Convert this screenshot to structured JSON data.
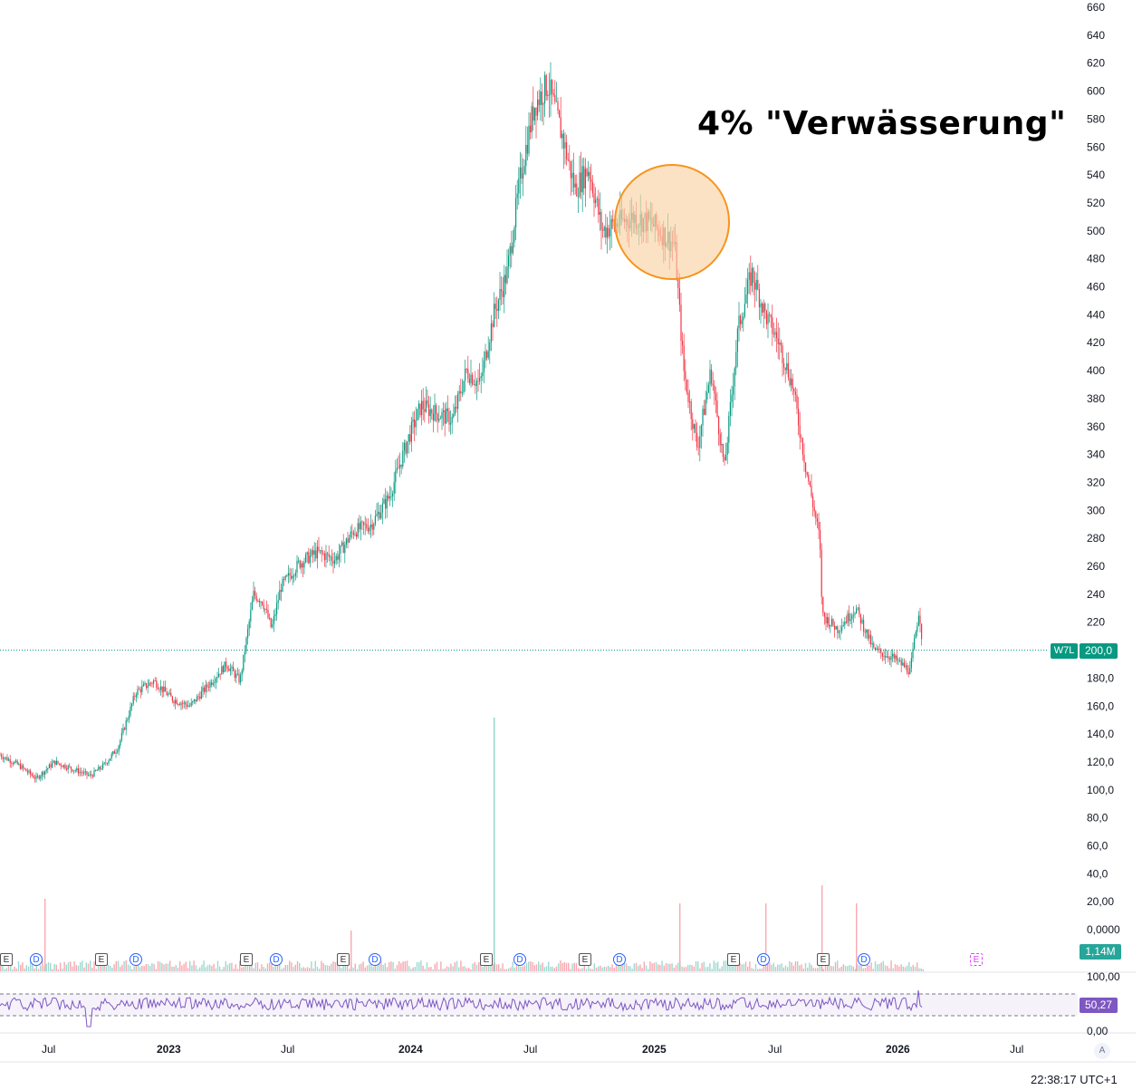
{
  "chart_data": {
    "type": "candlestick",
    "symbol": "W7L",
    "annotation": "4% \"Verwässerung\"",
    "price_axis": {
      "ticks": [
        "660",
        "640",
        "620",
        "600",
        "580",
        "560",
        "540",
        "520",
        "500",
        "480",
        "460",
        "440",
        "420",
        "400",
        "380",
        "360",
        "340",
        "320",
        "300",
        "280",
        "260",
        "240",
        "220",
        "200,0",
        "180,0",
        "160,0",
        "140,0",
        "120,0",
        "100,0",
        "80,0",
        "60,0",
        "40,0",
        "20,00",
        "0,0000"
      ],
      "ylim": [
        0,
        660
      ]
    },
    "time_axis": {
      "labels": [
        {
          "text": "Jul",
          "year": false
        },
        {
          "text": "2023",
          "year": true
        },
        {
          "text": "Jul",
          "year": false
        },
        {
          "text": "2024",
          "year": true
        },
        {
          "text": "Jul",
          "year": false
        },
        {
          "text": "2025",
          "year": true
        },
        {
          "text": "Jul",
          "year": false
        },
        {
          "text": "2026",
          "year": true
        },
        {
          "text": "Jul",
          "year": false
        }
      ]
    },
    "price_path": [
      [
        0,
        125
      ],
      [
        20,
        118
      ],
      [
        40,
        108
      ],
      [
        60,
        120
      ],
      [
        80,
        115
      ],
      [
        100,
        110
      ],
      [
        115,
        118
      ],
      [
        130,
        130
      ],
      [
        150,
        170
      ],
      [
        170,
        178
      ],
      [
        190,
        165
      ],
      [
        210,
        160
      ],
      [
        230,
        175
      ],
      [
        250,
        190
      ],
      [
        265,
        178
      ],
      [
        280,
        240
      ],
      [
        290,
        235
      ],
      [
        300,
        215
      ],
      [
        310,
        245
      ],
      [
        330,
        262
      ],
      [
        350,
        270
      ],
      [
        370,
        265
      ],
      [
        390,
        285
      ],
      [
        410,
        290
      ],
      [
        430,
        310
      ],
      [
        450,
        350
      ],
      [
        465,
        375
      ],
      [
        480,
        370
      ],
      [
        500,
        365
      ],
      [
        515,
        400
      ],
      [
        530,
        390
      ],
      [
        545,
        440
      ],
      [
        560,
        470
      ],
      [
        575,
        540
      ],
      [
        590,
        590
      ],
      [
        605,
        605
      ],
      [
        620,
        570
      ],
      [
        635,
        530
      ],
      [
        650,
        545
      ],
      [
        665,
        500
      ],
      [
        680,
        505
      ],
      [
        700,
        510
      ],
      [
        720,
        505
      ],
      [
        745,
        490
      ],
      [
        755,
        400
      ],
      [
        770,
        345
      ],
      [
        785,
        400
      ],
      [
        800,
        330
      ],
      [
        815,
        430
      ],
      [
        830,
        470
      ],
      [
        845,
        440
      ],
      [
        860,
        420
      ],
      [
        875,
        390
      ],
      [
        890,
        330
      ],
      [
        905,
        280
      ],
      [
        908,
        225
      ],
      [
        925,
        215
      ],
      [
        945,
        230
      ],
      [
        965,
        200
      ],
      [
        985,
        195
      ],
      [
        1005,
        185
      ],
      [
        1015,
        230
      ],
      [
        1019,
        200
      ]
    ],
    "last_price": "200,0",
    "volume": {
      "last_label": "1,14M",
      "spikes": [
        [
          49,
          80
        ],
        [
          387,
          45
        ],
        [
          545,
          280
        ],
        [
          750,
          75
        ],
        [
          845,
          75
        ],
        [
          907,
          95
        ],
        [
          945,
          75
        ]
      ]
    },
    "rsi": {
      "value_label": "50,27",
      "upper_label": "100,00",
      "lower_label": "0,00"
    },
    "events": [
      {
        "type": "E",
        "label": "E"
      },
      {
        "type": "D",
        "label": "D"
      },
      {
        "type": "E",
        "label": "E"
      },
      {
        "type": "D",
        "label": "D"
      },
      {
        "type": "E",
        "label": "E"
      },
      {
        "type": "D",
        "label": "D"
      },
      {
        "type": "E",
        "label": "E"
      },
      {
        "type": "D",
        "label": "D"
      },
      {
        "type": "E",
        "label": "E"
      },
      {
        "type": "D",
        "label": "D"
      },
      {
        "type": "E",
        "label": "E"
      },
      {
        "type": "D",
        "label": "D"
      },
      {
        "type": "E",
        "label": "E"
      },
      {
        "type": "D",
        "label": "D"
      },
      {
        "type": "E",
        "label": "E"
      },
      {
        "type": "D",
        "label": "D"
      },
      {
        "type": "E",
        "label": "E"
      }
    ],
    "colors": {
      "up": "#089981",
      "down": "#f23645",
      "rsi": "#7e57c2",
      "highlight": "#f7941d"
    }
  },
  "footer": {
    "clock": "22:38:17 UTC+1",
    "auto_label": "A"
  }
}
